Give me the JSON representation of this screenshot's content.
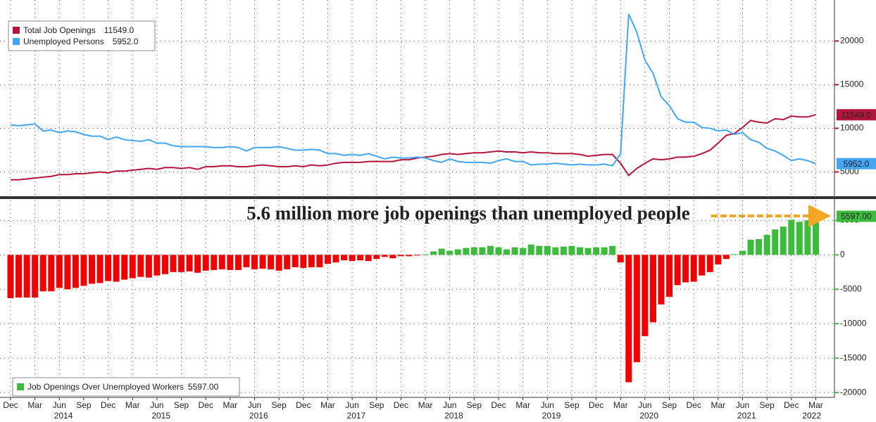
{
  "chart_data": [
    {
      "type": "line",
      "x": [
        "2013-12",
        "2014-01",
        "2014-02",
        "2014-03",
        "2014-04",
        "2014-05",
        "2014-06",
        "2014-07",
        "2014-08",
        "2014-09",
        "2014-10",
        "2014-11",
        "2014-12",
        "2015-01",
        "2015-02",
        "2015-03",
        "2015-04",
        "2015-05",
        "2015-06",
        "2015-07",
        "2015-08",
        "2015-09",
        "2015-10",
        "2015-11",
        "2015-12",
        "2016-01",
        "2016-02",
        "2016-03",
        "2016-04",
        "2016-05",
        "2016-06",
        "2016-07",
        "2016-08",
        "2016-09",
        "2016-10",
        "2016-11",
        "2016-12",
        "2017-01",
        "2017-02",
        "2017-03",
        "2017-04",
        "2017-05",
        "2017-06",
        "2017-07",
        "2017-08",
        "2017-09",
        "2017-10",
        "2017-11",
        "2017-12",
        "2018-01",
        "2018-02",
        "2018-03",
        "2018-04",
        "2018-05",
        "2018-06",
        "2018-07",
        "2018-08",
        "2018-09",
        "2018-10",
        "2018-11",
        "2018-12",
        "2019-01",
        "2019-02",
        "2019-03",
        "2019-04",
        "2019-05",
        "2019-06",
        "2019-07",
        "2019-08",
        "2019-09",
        "2019-10",
        "2019-11",
        "2019-12",
        "2020-01",
        "2020-02",
        "2020-03",
        "2020-04",
        "2020-05",
        "2020-06",
        "2020-07",
        "2020-08",
        "2020-09",
        "2020-10",
        "2020-11",
        "2020-12",
        "2021-01",
        "2021-02",
        "2021-03",
        "2021-04",
        "2021-05",
        "2021-06",
        "2021-07",
        "2021-08",
        "2021-09",
        "2021-10",
        "2021-11",
        "2021-12",
        "2022-01",
        "2022-02",
        "2022-03"
      ],
      "xticks": [
        {
          "value": "2013-12",
          "label": "Dec"
        },
        {
          "value": "2014-03",
          "label": "Mar"
        },
        {
          "value": "2014-06",
          "label": "Jun"
        },
        {
          "value": "2014-09",
          "label": "Sep"
        },
        {
          "value": "2014-12",
          "label": "Dec"
        },
        {
          "value": "2015-03",
          "label": "Mar"
        },
        {
          "value": "2015-06",
          "label": "Jun"
        },
        {
          "value": "2015-09",
          "label": "Sep"
        },
        {
          "value": "2015-12",
          "label": "Dec"
        },
        {
          "value": "2016-03",
          "label": "Mar"
        },
        {
          "value": "2016-06",
          "label": "Jun"
        },
        {
          "value": "2016-09",
          "label": "Sep"
        },
        {
          "value": "2016-12",
          "label": "Dec"
        },
        {
          "value": "2017-03",
          "label": "Mar"
        },
        {
          "value": "2017-06",
          "label": "Jun"
        },
        {
          "value": "2017-09",
          "label": "Sep"
        },
        {
          "value": "2017-12",
          "label": "Dec"
        },
        {
          "value": "2018-03",
          "label": "Mar"
        },
        {
          "value": "2018-06",
          "label": "Jun"
        },
        {
          "value": "2018-09",
          "label": "Sep"
        },
        {
          "value": "2018-12",
          "label": "Dec"
        },
        {
          "value": "2019-03",
          "label": "Mar"
        },
        {
          "value": "2019-06",
          "label": "Jun"
        },
        {
          "value": "2019-09",
          "label": "Sep"
        },
        {
          "value": "2019-12",
          "label": "Dec"
        },
        {
          "value": "2020-03",
          "label": "Mar"
        },
        {
          "value": "2020-06",
          "label": "Jun"
        },
        {
          "value": "2020-09",
          "label": "Sep"
        },
        {
          "value": "2020-12",
          "label": "Dec"
        },
        {
          "value": "2021-03",
          "label": "Mar"
        },
        {
          "value": "2021-06",
          "label": "Jun"
        },
        {
          "value": "2021-09",
          "label": "Sep"
        },
        {
          "value": "2021-12",
          "label": "Dec"
        },
        {
          "value": "2022-03",
          "label": "Mar"
        }
      ],
      "year_labels": [
        {
          "value": "2014-06",
          "label": "2014"
        },
        {
          "value": "2015-06",
          "label": "2015"
        },
        {
          "value": "2016-06",
          "label": "2016"
        },
        {
          "value": "2017-06",
          "label": "2017"
        },
        {
          "value": "2018-06",
          "label": "2018"
        },
        {
          "value": "2019-06",
          "label": "2019"
        },
        {
          "value": "2020-06",
          "label": "2020"
        },
        {
          "value": "2021-06",
          "label": "2021"
        },
        {
          "value": "2022-02",
          "label": "2022"
        }
      ],
      "ylim": [
        2300,
        24700
      ],
      "yticks": [
        5000,
        10000,
        15000,
        20000
      ],
      "grid": true,
      "legend": "upper left",
      "series": [
        {
          "name": "Total Job Openings",
          "color": "#b5153a",
          "last_value_label": "11549.0",
          "values": [
            4100,
            4100,
            4200,
            4300,
            4400,
            4500,
            4700,
            4700,
            4800,
            4800,
            4900,
            5000,
            4900,
            5100,
            5100,
            5200,
            5300,
            5400,
            5300,
            5500,
            5500,
            5400,
            5500,
            5300,
            5600,
            5600,
            5700,
            5700,
            5600,
            5600,
            5700,
            5800,
            5700,
            5600,
            5600,
            5700,
            5600,
            5800,
            5700,
            5800,
            6000,
            6100,
            6100,
            6100,
            6200,
            6200,
            6200,
            6200,
            6400,
            6400,
            6600,
            6700,
            6800,
            7000,
            7100,
            7000,
            7100,
            7200,
            7200,
            7300,
            7400,
            7300,
            7300,
            7200,
            7300,
            7200,
            7200,
            7100,
            7100,
            7100,
            7000,
            6800,
            6900,
            7000,
            7000,
            6000,
            4600,
            5400,
            6000,
            6500,
            6400,
            6500,
            6700,
            6700,
            6800,
            7100,
            7500,
            8300,
            9200,
            9400,
            10100,
            10900,
            10700,
            10600,
            11100,
            11000,
            11400,
            11300,
            11300,
            11549
          ]
        },
        {
          "name": "Unemployed Persons",
          "color": "#42a5f5",
          "last_value_label": "5952.0",
          "values": [
            10400,
            10300,
            10400,
            10500,
            9700,
            9800,
            9500,
            9700,
            9600,
            9300,
            9100,
            9100,
            8700,
            9000,
            8700,
            8600,
            8500,
            8700,
            8300,
            8300,
            8000,
            7900,
            7900,
            7900,
            7900,
            7800,
            7800,
            7900,
            7800,
            7400,
            7800,
            7800,
            7800,
            7900,
            7700,
            7500,
            7500,
            7600,
            7500,
            7100,
            7100,
            6900,
            7000,
            6900,
            7100,
            6800,
            6500,
            6700,
            6600,
            6600,
            6700,
            6600,
            6300,
            6100,
            6500,
            6200,
            6100,
            6100,
            6100,
            6000,
            6300,
            6500,
            6200,
            6200,
            5800,
            5900,
            5900,
            6000,
            5900,
            5800,
            5900,
            5800,
            5800,
            5900,
            5700,
            7100,
            23100,
            21000,
            17800,
            16300,
            13600,
            12600,
            11100,
            10700,
            10700,
            10100,
            10000,
            9700,
            9800,
            9300,
            9500,
            8700,
            8400,
            7700,
            7400,
            6900,
            6300,
            6500,
            6300,
            5952
          ]
        }
      ]
    },
    {
      "type": "bar",
      "ylim": [
        -20700,
        7900
      ],
      "yticks": [
        5000,
        0,
        -5000,
        -10000,
        -15000,
        -20000
      ],
      "grid": true,
      "legend": "lower left",
      "annotation": "5.6 million more job openings than unemployed people",
      "series": [
        {
          "name": "Job Openings Over Unemployed Workers",
          "positive_color": "#3dbb3d",
          "negative_color": "#f00000",
          "last_value_label": "5597.00",
          "values": [
            -6300,
            -6200,
            -6200,
            -6200,
            -5300,
            -5300,
            -4800,
            -5000,
            -4800,
            -4500,
            -4200,
            -4100,
            -3800,
            -3900,
            -3600,
            -3400,
            -3200,
            -3300,
            -3000,
            -2800,
            -2500,
            -2500,
            -2400,
            -2600,
            -2300,
            -2200,
            -2100,
            -2200,
            -2200,
            -1800,
            -2100,
            -2000,
            -2100,
            -2300,
            -2100,
            -1800,
            -1900,
            -1800,
            -1800,
            -1300,
            -1100,
            -800,
            -900,
            -800,
            -900,
            -600,
            -300,
            -500,
            -200,
            -200,
            -100,
            100,
            500,
            900,
            600,
            800,
            1000,
            1100,
            1100,
            1300,
            1100,
            800,
            1100,
            1000,
            1500,
            1300,
            1300,
            1100,
            1200,
            1300,
            1100,
            1000,
            1100,
            1100,
            1300,
            -1100,
            -18500,
            -15600,
            -11800,
            -9800,
            -7200,
            -6100,
            -4400,
            -4000,
            -3900,
            -3000,
            -2500,
            -1400,
            -600,
            100,
            600,
            2200,
            2300,
            2900,
            3700,
            4100,
            5100,
            4800,
            5000,
            5597
          ]
        }
      ]
    }
  ]
}
